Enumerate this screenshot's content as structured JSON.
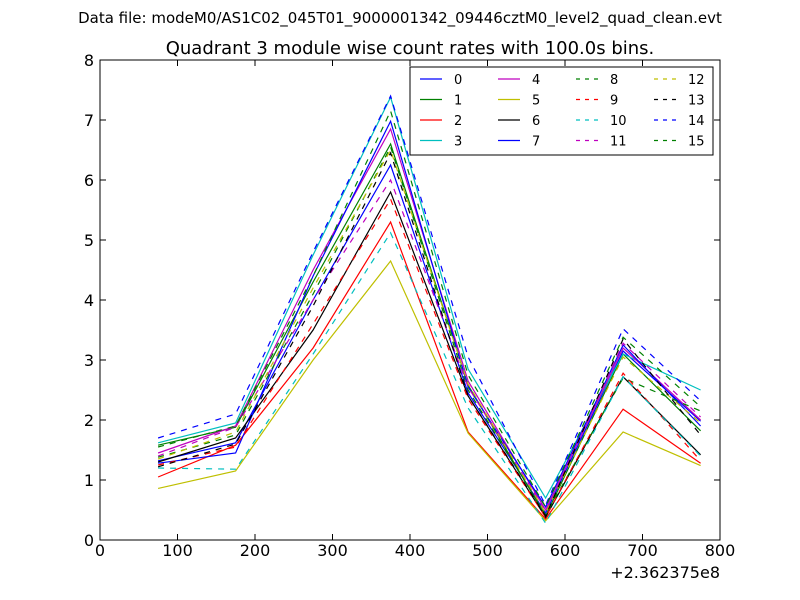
{
  "figure": {
    "suptitle": "Data file: modeM0/AS1C02_045T01_9000001342_09446cztM0_level2_quad_clean.evt"
  },
  "chart_data": {
    "type": "line",
    "title": "Quadrant 3 module wise count rates with 100.0s bins.",
    "xlabel": "",
    "ylabel": "",
    "x_offset_label": "+2.362375e8",
    "xlim": [
      0,
      800
    ],
    "ylim": [
      0,
      8
    ],
    "xticks": [
      0,
      100,
      200,
      300,
      400,
      500,
      600,
      700,
      800
    ],
    "yticks": [
      0,
      1,
      2,
      3,
      4,
      5,
      6,
      7,
      8
    ],
    "grid": false,
    "legend_position": "top-right",
    "legend_columns": 4,
    "x": [
      75,
      175,
      275,
      375,
      475,
      575,
      675,
      775
    ],
    "series": [
      {
        "name": "0",
        "color": "#0000ff",
        "dash": "solid",
        "values": [
          1.32,
          1.62,
          4.0,
          6.25,
          2.45,
          0.45,
          3.15,
          1.98
        ]
      },
      {
        "name": "1",
        "color": "#008000",
        "dash": "solid",
        "values": [
          1.58,
          1.88,
          4.3,
          6.6,
          2.58,
          0.4,
          3.1,
          1.82
        ]
      },
      {
        "name": "2",
        "color": "#ff0000",
        "dash": "solid",
        "values": [
          1.05,
          1.58,
          3.2,
          5.3,
          1.8,
          0.35,
          2.18,
          1.28
        ]
      },
      {
        "name": "3",
        "color": "#00bfbf",
        "dash": "solid",
        "values": [
          1.62,
          1.95,
          4.75,
          7.38,
          2.85,
          0.7,
          3.1,
          2.5
        ]
      },
      {
        "name": "4",
        "color": "#bf00bf",
        "dash": "solid",
        "values": [
          1.45,
          1.9,
          4.5,
          6.85,
          2.65,
          0.5,
          3.2,
          2.0
        ]
      },
      {
        "name": "5",
        "color": "#bfbf00",
        "dash": "solid",
        "values": [
          0.86,
          1.15,
          3.0,
          4.65,
          1.78,
          0.32,
          1.8,
          1.24
        ]
      },
      {
        "name": "6",
        "color": "#000000",
        "dash": "solid",
        "values": [
          1.3,
          1.7,
          3.5,
          5.8,
          2.4,
          0.38,
          2.72,
          1.42
        ]
      },
      {
        "name": "7",
        "color": "#0000ff",
        "dash": "solid",
        "values": [
          1.28,
          1.45,
          4.4,
          6.98,
          2.55,
          0.55,
          3.25,
          1.9
        ]
      },
      {
        "name": "8",
        "color": "#008000",
        "dash": "dashed",
        "values": [
          1.38,
          1.75,
          4.1,
          6.55,
          2.5,
          0.42,
          2.7,
          2.15
        ]
      },
      {
        "name": "9",
        "color": "#ff0000",
        "dash": "dashed",
        "values": [
          1.25,
          1.55,
          3.6,
          5.68,
          2.35,
          0.38,
          2.78,
          1.32
        ]
      },
      {
        "name": "10",
        "color": "#00bfbf",
        "dash": "dashed",
        "values": [
          1.2,
          1.18,
          3.1,
          5.12,
          2.2,
          0.28,
          2.72,
          1.4
        ]
      },
      {
        "name": "11",
        "color": "#bf00bf",
        "dash": "dashed",
        "values": [
          1.4,
          1.88,
          4.0,
          6.0,
          2.55,
          0.48,
          3.28,
          2.05
        ]
      },
      {
        "name": "12",
        "color": "#bfbf00",
        "dash": "dashed",
        "values": [
          1.35,
          1.8,
          4.2,
          6.5,
          2.6,
          0.45,
          3.05,
          1.95
        ]
      },
      {
        "name": "13",
        "color": "#000000",
        "dash": "dashed",
        "values": [
          1.22,
          1.6,
          3.9,
          6.45,
          2.4,
          0.4,
          3.35,
          1.75
        ]
      },
      {
        "name": "14",
        "color": "#0000ff",
        "dash": "dashed",
        "values": [
          1.7,
          2.1,
          4.8,
          7.4,
          3.05,
          0.58,
          3.52,
          2.32
        ]
      },
      {
        "name": "15",
        "color": "#008000",
        "dash": "dashed",
        "values": [
          1.55,
          1.9,
          4.4,
          7.15,
          2.75,
          0.55,
          3.38,
          2.22
        ]
      }
    ]
  }
}
